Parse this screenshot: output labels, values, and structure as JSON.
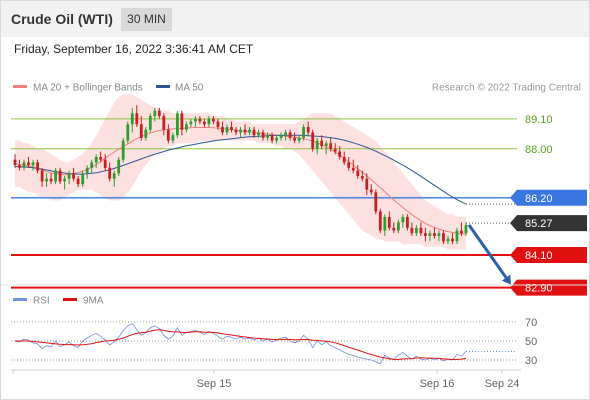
{
  "header": {
    "title": "Crude Oil (WTI)",
    "interval": "30 MIN",
    "datetime": "Friday, September 16, 2022 3:36:41 AM CET"
  },
  "legend": {
    "ma20_label": "MA 20 + Bollinger Bands",
    "ma50_label": "MA 50",
    "credit": "Research © 2022 Trading Central",
    "ma20_color": "#f08080",
    "ma50_color": "#2e5597",
    "rsi_label": "RSI",
    "rsi9_label": "9MA",
    "rsi_color": "#6f8fe0",
    "rsi9_color": "#e01010"
  },
  "chart_data": [
    {
      "type": "candlestick",
      "title": "Crude Oil (WTI)",
      "ylim": [
        82.5,
        90.5
      ],
      "levels": [
        {
          "value": 89.1,
          "label": "89.10",
          "kind": "resistance",
          "color": "#8dc63f"
        },
        {
          "value": 88.0,
          "label": "88.00",
          "kind": "resistance",
          "color": "#8dc63f"
        },
        {
          "value": 86.2,
          "label": "86.20",
          "kind": "pivot",
          "color": "#3a76e0"
        },
        {
          "value": 85.27,
          "label": "85.27",
          "kind": "last",
          "color": "#333333"
        },
        {
          "value": 84.1,
          "label": "84.10",
          "kind": "support",
          "color": "#e01010"
        },
        {
          "value": 82.9,
          "label": "82.90",
          "kind": "support",
          "color": "#e01010"
        }
      ],
      "x_ticks": [
        "Sep 15",
        "Sep 16",
        "Sep 24"
      ],
      "candles": [
        [
          87.6,
          87.8,
          87.3,
          87.4
        ],
        [
          87.4,
          87.6,
          87.2,
          87.3
        ],
        [
          87.3,
          87.6,
          87.2,
          87.5
        ],
        [
          87.5,
          87.7,
          87.3,
          87.4
        ],
        [
          87.4,
          87.6,
          87.2,
          87.5
        ],
        [
          87.5,
          87.6,
          87.1,
          87.2
        ],
        [
          87.2,
          87.3,
          86.6,
          86.8
        ],
        [
          86.8,
          87.1,
          86.6,
          86.9
        ],
        [
          86.9,
          87.1,
          86.7,
          86.8
        ],
        [
          86.8,
          87.3,
          86.7,
          87.2
        ],
        [
          87.2,
          87.3,
          86.7,
          86.8
        ],
        [
          86.8,
          87.0,
          86.5,
          86.9
        ],
        [
          86.9,
          87.2,
          86.7,
          87.1
        ],
        [
          87.1,
          87.3,
          86.8,
          86.9
        ],
        [
          86.9,
          87.0,
          86.6,
          86.7
        ],
        [
          86.7,
          87.2,
          86.6,
          87.1
        ],
        [
          87.1,
          87.4,
          86.9,
          87.3
        ],
        [
          87.3,
          87.6,
          87.1,
          87.5
        ],
        [
          87.5,
          87.8,
          87.3,
          87.7
        ],
        [
          87.7,
          87.9,
          87.5,
          87.6
        ],
        [
          87.6,
          87.8,
          87.2,
          87.3
        ],
        [
          87.3,
          87.5,
          86.8,
          86.9
        ],
        [
          86.9,
          87.2,
          86.6,
          87.1
        ],
        [
          87.1,
          87.7,
          87.0,
          87.6
        ],
        [
          87.6,
          88.4,
          87.5,
          88.3
        ],
        [
          88.3,
          89.0,
          88.2,
          88.9
        ],
        [
          88.9,
          89.5,
          88.6,
          89.3
        ],
        [
          89.3,
          89.6,
          88.8,
          88.9
        ],
        [
          88.9,
          89.2,
          88.3,
          88.4
        ],
        [
          88.4,
          88.8,
          88.3,
          88.7
        ],
        [
          88.7,
          89.3,
          88.6,
          89.2
        ],
        [
          89.2,
          89.5,
          89.0,
          89.4
        ],
        [
          89.4,
          89.5,
          89.1,
          89.2
        ],
        [
          89.2,
          89.3,
          88.5,
          88.7
        ],
        [
          88.7,
          88.9,
          88.2,
          88.3
        ],
        [
          88.3,
          88.6,
          88.2,
          88.5
        ],
        [
          88.5,
          89.4,
          88.4,
          89.3
        ],
        [
          89.3,
          89.4,
          88.5,
          88.7
        ],
        [
          88.7,
          89.0,
          88.6,
          88.9
        ],
        [
          88.9,
          89.1,
          88.8,
          89.0
        ],
        [
          89.0,
          89.2,
          88.8,
          89.1
        ],
        [
          89.1,
          89.2,
          88.9,
          89.0
        ],
        [
          89.0,
          89.1,
          88.8,
          88.9
        ],
        [
          88.9,
          89.2,
          88.8,
          89.1
        ],
        [
          89.1,
          89.2,
          88.9,
          89.0
        ],
        [
          89.0,
          89.1,
          88.7,
          88.8
        ],
        [
          88.8,
          89.0,
          88.5,
          88.6
        ],
        [
          88.6,
          88.9,
          88.5,
          88.8
        ],
        [
          88.8,
          89.0,
          88.6,
          88.7
        ],
        [
          88.7,
          88.8,
          88.5,
          88.6
        ],
        [
          88.6,
          88.8,
          88.4,
          88.7
        ],
        [
          88.7,
          88.9,
          88.5,
          88.6
        ],
        [
          88.6,
          88.8,
          88.5,
          88.7
        ],
        [
          88.7,
          88.8,
          88.4,
          88.5
        ],
        [
          88.5,
          88.7,
          88.4,
          88.6
        ],
        [
          88.6,
          88.7,
          88.3,
          88.4
        ],
        [
          88.4,
          88.6,
          88.3,
          88.5
        ],
        [
          88.5,
          88.6,
          88.2,
          88.3
        ],
        [
          88.3,
          88.5,
          88.2,
          88.4
        ],
        [
          88.4,
          88.6,
          88.3,
          88.5
        ],
        [
          88.5,
          88.7,
          88.3,
          88.6
        ],
        [
          88.6,
          88.7,
          88.3,
          88.4
        ],
        [
          88.4,
          88.6,
          88.2,
          88.3
        ],
        [
          88.3,
          88.5,
          88.2,
          88.4
        ],
        [
          88.4,
          88.9,
          88.3,
          88.8
        ],
        [
          88.8,
          89.0,
          88.5,
          88.6
        ],
        [
          88.6,
          88.7,
          87.9,
          88.0
        ],
        [
          88.0,
          88.4,
          87.8,
          88.3
        ],
        [
          88.3,
          88.5,
          88.0,
          88.1
        ],
        [
          88.1,
          88.3,
          87.8,
          88.2
        ],
        [
          88.2,
          88.4,
          87.9,
          88.0
        ],
        [
          88.0,
          88.2,
          87.8,
          87.9
        ],
        [
          87.9,
          88.1,
          87.6,
          87.7
        ],
        [
          87.7,
          87.9,
          87.4,
          87.5
        ],
        [
          87.5,
          87.7,
          87.2,
          87.3
        ],
        [
          87.3,
          87.6,
          87.1,
          87.2
        ],
        [
          87.2,
          87.4,
          86.9,
          87.0
        ],
        [
          87.0,
          87.2,
          86.8,
          86.9
        ],
        [
          86.9,
          87.1,
          86.3,
          86.5
        ],
        [
          86.5,
          86.7,
          86.3,
          86.4
        ],
        [
          86.4,
          86.5,
          85.6,
          85.7
        ],
        [
          85.7,
          85.8,
          84.9,
          85.0
        ],
        [
          85.0,
          85.6,
          84.8,
          85.5
        ],
        [
          85.5,
          85.7,
          85.0,
          85.1
        ],
        [
          85.1,
          85.3,
          84.9,
          85.0
        ],
        [
          85.0,
          85.4,
          84.9,
          85.3
        ],
        [
          85.3,
          85.6,
          85.1,
          85.5
        ],
        [
          85.5,
          85.6,
          85.0,
          85.1
        ],
        [
          85.1,
          85.3,
          84.8,
          84.9
        ],
        [
          84.9,
          85.2,
          84.8,
          85.1
        ],
        [
          85.1,
          85.3,
          84.8,
          84.9
        ],
        [
          84.9,
          85.1,
          84.6,
          84.8
        ],
        [
          84.8,
          85.0,
          84.6,
          84.9
        ],
        [
          84.9,
          85.1,
          84.7,
          84.8
        ],
        [
          84.8,
          85.0,
          84.6,
          84.9
        ],
        [
          84.9,
          85.0,
          84.5,
          84.6
        ],
        [
          84.6,
          84.8,
          84.5,
          84.7
        ],
        [
          84.7,
          84.9,
          84.5,
          84.6
        ],
        [
          84.6,
          85.1,
          84.5,
          85.0
        ],
        [
          85.0,
          85.3,
          84.8,
          84.9
        ],
        [
          84.9,
          85.3,
          84.8,
          85.2
        ]
      ],
      "ma20": [
        87.45,
        87.42,
        87.4,
        87.37,
        87.33,
        87.28,
        87.22,
        87.16,
        87.11,
        87.08,
        87.06,
        87.05,
        87.06,
        87.09,
        87.13,
        87.18,
        87.24,
        87.32,
        87.42,
        87.53,
        87.65,
        87.77,
        87.88,
        87.98,
        88.08,
        88.18,
        88.28,
        88.37,
        88.45,
        88.52,
        88.58,
        88.63,
        88.67,
        88.7,
        88.72,
        88.73,
        88.74,
        88.75,
        88.76,
        88.77,
        88.78,
        88.78,
        88.78,
        88.78,
        88.77,
        88.76,
        88.74,
        88.72,
        88.7,
        88.68,
        88.66,
        88.64,
        88.62,
        88.6,
        88.58,
        88.56,
        88.54,
        88.52,
        88.5,
        88.48,
        88.46,
        88.44,
        88.42,
        88.4,
        88.37,
        88.33,
        88.28,
        88.22,
        88.15,
        88.07,
        87.98,
        87.88,
        87.77,
        87.65,
        87.53,
        87.4,
        87.27,
        87.14,
        87.0,
        86.86,
        86.72,
        86.57,
        86.42,
        86.27,
        86.12,
        85.98,
        85.84,
        85.71,
        85.58,
        85.47,
        85.36,
        85.26,
        85.18,
        85.11,
        85.05,
        85.0,
        84.96,
        84.93,
        84.9,
        84.88,
        84.87
      ],
      "ma50": [
        87.35,
        87.34,
        87.33,
        87.32,
        87.3,
        87.28,
        87.25,
        87.22,
        87.19,
        87.16,
        87.13,
        87.11,
        87.09,
        87.08,
        87.07,
        87.07,
        87.08,
        87.1,
        87.12,
        87.15,
        87.19,
        87.23,
        87.28,
        87.33,
        87.39,
        87.45,
        87.51,
        87.57,
        87.63,
        87.69,
        87.75,
        87.8,
        87.85,
        87.9,
        87.95,
        87.99,
        88.03,
        88.07,
        88.11,
        88.14,
        88.17,
        88.2,
        88.23,
        88.26,
        88.29,
        88.31,
        88.33,
        88.35,
        88.37,
        88.39,
        88.41,
        88.43,
        88.44,
        88.45,
        88.46,
        88.47,
        88.48,
        88.49,
        88.49,
        88.5,
        88.5,
        88.5,
        88.5,
        88.5,
        88.49,
        88.48,
        88.47,
        88.46,
        88.45,
        88.43,
        88.41,
        88.38,
        88.35,
        88.31,
        88.27,
        88.22,
        88.17,
        88.11,
        88.05,
        87.98,
        87.91,
        87.83,
        87.75,
        87.67,
        87.58,
        87.49,
        87.4,
        87.3,
        87.2,
        87.1,
        86.99,
        86.88,
        86.77,
        86.66,
        86.55,
        86.44,
        86.33,
        86.23,
        86.13,
        86.05,
        85.97
      ],
      "bb_upper": [
        88.3,
        88.3,
        88.2,
        88.2,
        88.1,
        88.0,
        88.0,
        87.9,
        87.8,
        87.7,
        87.6,
        87.5,
        87.5,
        87.6,
        87.7,
        87.8,
        88.0,
        88.2,
        88.5,
        88.8,
        89.1,
        89.4,
        89.7,
        89.9,
        90.0,
        90.0,
        90.0,
        89.9,
        89.8,
        89.7,
        89.6,
        89.5,
        89.5,
        89.4,
        89.4,
        89.3,
        89.3,
        89.3,
        89.3,
        89.3,
        89.3,
        89.3,
        89.3,
        89.3,
        89.2,
        89.2,
        89.2,
        89.1,
        89.1,
        89.0,
        89.0,
        89.0,
        89.0,
        88.9,
        88.9,
        88.9,
        88.9,
        88.9,
        88.9,
        88.9,
        88.9,
        88.9,
        88.9,
        89.0,
        89.1,
        89.2,
        89.3,
        89.3,
        89.3,
        89.3,
        89.3,
        89.2,
        89.1,
        89.0,
        88.9,
        88.8,
        88.7,
        88.6,
        88.5,
        88.4,
        88.3,
        88.1,
        87.9,
        87.7,
        87.5,
        87.3,
        87.1,
        86.9,
        86.7,
        86.5,
        86.3,
        86.1,
        86.0,
        85.9,
        85.8,
        85.7,
        85.6,
        85.6,
        85.5,
        85.5,
        85.5
      ],
      "bb_lower": [
        86.6,
        86.6,
        86.5,
        86.4,
        86.4,
        86.3,
        86.2,
        86.2,
        86.1,
        86.1,
        86.1,
        86.2,
        86.3,
        86.4,
        86.5,
        86.5,
        86.5,
        86.5,
        86.4,
        86.3,
        86.2,
        86.1,
        86.1,
        86.1,
        86.2,
        86.4,
        86.6,
        86.9,
        87.2,
        87.4,
        87.6,
        87.8,
        87.9,
        88.0,
        88.1,
        88.1,
        88.2,
        88.2,
        88.2,
        88.2,
        88.2,
        88.3,
        88.3,
        88.3,
        88.3,
        88.3,
        88.3,
        88.3,
        88.3,
        88.3,
        88.3,
        88.3,
        88.3,
        88.3,
        88.2,
        88.2,
        88.2,
        88.2,
        88.1,
        88.1,
        88.0,
        88.0,
        87.9,
        87.8,
        87.6,
        87.4,
        87.2,
        87.0,
        86.8,
        86.6,
        86.4,
        86.2,
        86.0,
        85.8,
        85.6,
        85.4,
        85.2,
        85.0,
        84.9,
        84.8,
        84.7,
        84.7,
        84.6,
        84.6,
        84.6,
        84.6,
        84.5,
        84.5,
        84.5,
        84.5,
        84.5,
        84.4,
        84.4,
        84.4,
        84.4,
        84.4,
        84.3,
        84.3,
        84.3,
        84.3,
        84.3
      ],
      "projection": {
        "from": 85.2,
        "to": 82.9
      }
    },
    {
      "type": "line",
      "title": "RSI",
      "ylim": [
        20,
        80
      ],
      "y_ticks": [
        70,
        50,
        30
      ],
      "series": [
        {
          "name": "RSI",
          "values": [
            50,
            49,
            52,
            51,
            48,
            47,
            42,
            45,
            44,
            50,
            44,
            46,
            49,
            45,
            43,
            50,
            53,
            56,
            58,
            55,
            51,
            46,
            49,
            54,
            61,
            66,
            68,
            62,
            56,
            59,
            64,
            66,
            63,
            56,
            52,
            55,
            64,
            56,
            59,
            60,
            61,
            59,
            57,
            60,
            58,
            55,
            52,
            55,
            54,
            52,
            54,
            52,
            53,
            51,
            53,
            50,
            52,
            49,
            51,
            53,
            54,
            50,
            48,
            50,
            56,
            52,
            43,
            50,
            46,
            49,
            45,
            43,
            41,
            38,
            36,
            35,
            33,
            32,
            31,
            30,
            28,
            26,
            35,
            32,
            31,
            35,
            38,
            34,
            31,
            34,
            31,
            30,
            32,
            30,
            32,
            29,
            31,
            30,
            36,
            34,
            39
          ]
        },
        {
          "name": "9MA",
          "values": [
            50,
            50,
            50,
            50,
            49.5,
            49,
            48.5,
            48,
            47.5,
            47,
            46.5,
            46.3,
            46.2,
            46.0,
            45.8,
            46.0,
            46.5,
            47.2,
            48.3,
            49.3,
            50.0,
            50.3,
            50.8,
            51.8,
            53.2,
            54.9,
            56.8,
            58.1,
            58.7,
            59.3,
            60.3,
            61.5,
            61.8,
            61.2,
            60.3,
            59.8,
            59.6,
            59.0,
            58.8,
            59.4,
            59.8,
            59.7,
            59.2,
            59.2,
            59.0,
            58.5,
            57.6,
            57.0,
            56.3,
            55.5,
            54.8,
            54.2,
            53.7,
            53.1,
            52.7,
            52.4,
            52.1,
            51.7,
            51.5,
            51.6,
            51.8,
            51.6,
            51.3,
            51.3,
            51.6,
            51.6,
            50.8,
            50.6,
            50.1,
            49.8,
            49.0,
            48.1,
            46.7,
            45.1,
            43.4,
            42.0,
            40.4,
            38.8,
            37.2,
            35.8,
            34.4,
            33.0,
            32.2,
            31.2,
            30.6,
            30.6,
            31.1,
            31.3,
            31.5,
            32.1,
            32.3,
            32.1,
            32.0,
            31.8,
            31.7,
            31.2,
            30.8,
            30.5,
            30.6,
            31.0,
            31.7
          ]
        }
      ]
    }
  ]
}
